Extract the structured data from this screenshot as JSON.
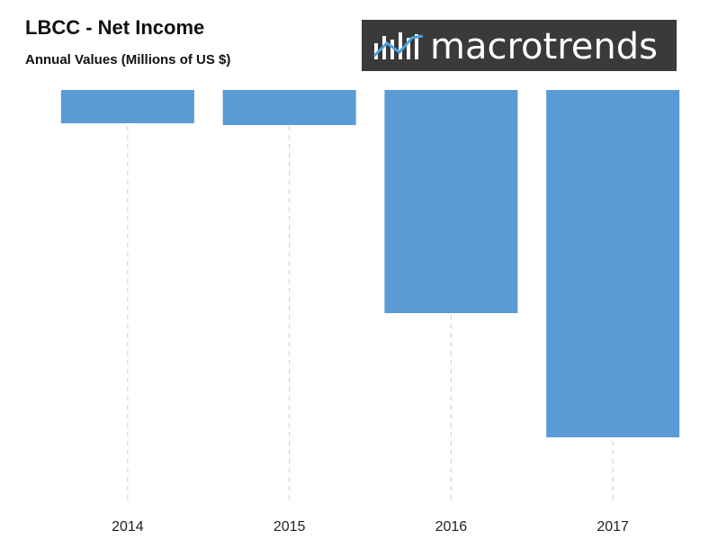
{
  "chart_data": {
    "type": "bar",
    "title": "LBCC - Net Income",
    "subtitle": "Annual Values (Millions of US $)",
    "logo": "macrotrends",
    "categories": [
      "2014",
      "2015",
      "2016",
      "2017"
    ],
    "values": [
      -1.85,
      -1.95,
      -12.4,
      -19.3
    ],
    "color": "#5b9bd5",
    "ylim": [
      -23,
      0
    ]
  }
}
